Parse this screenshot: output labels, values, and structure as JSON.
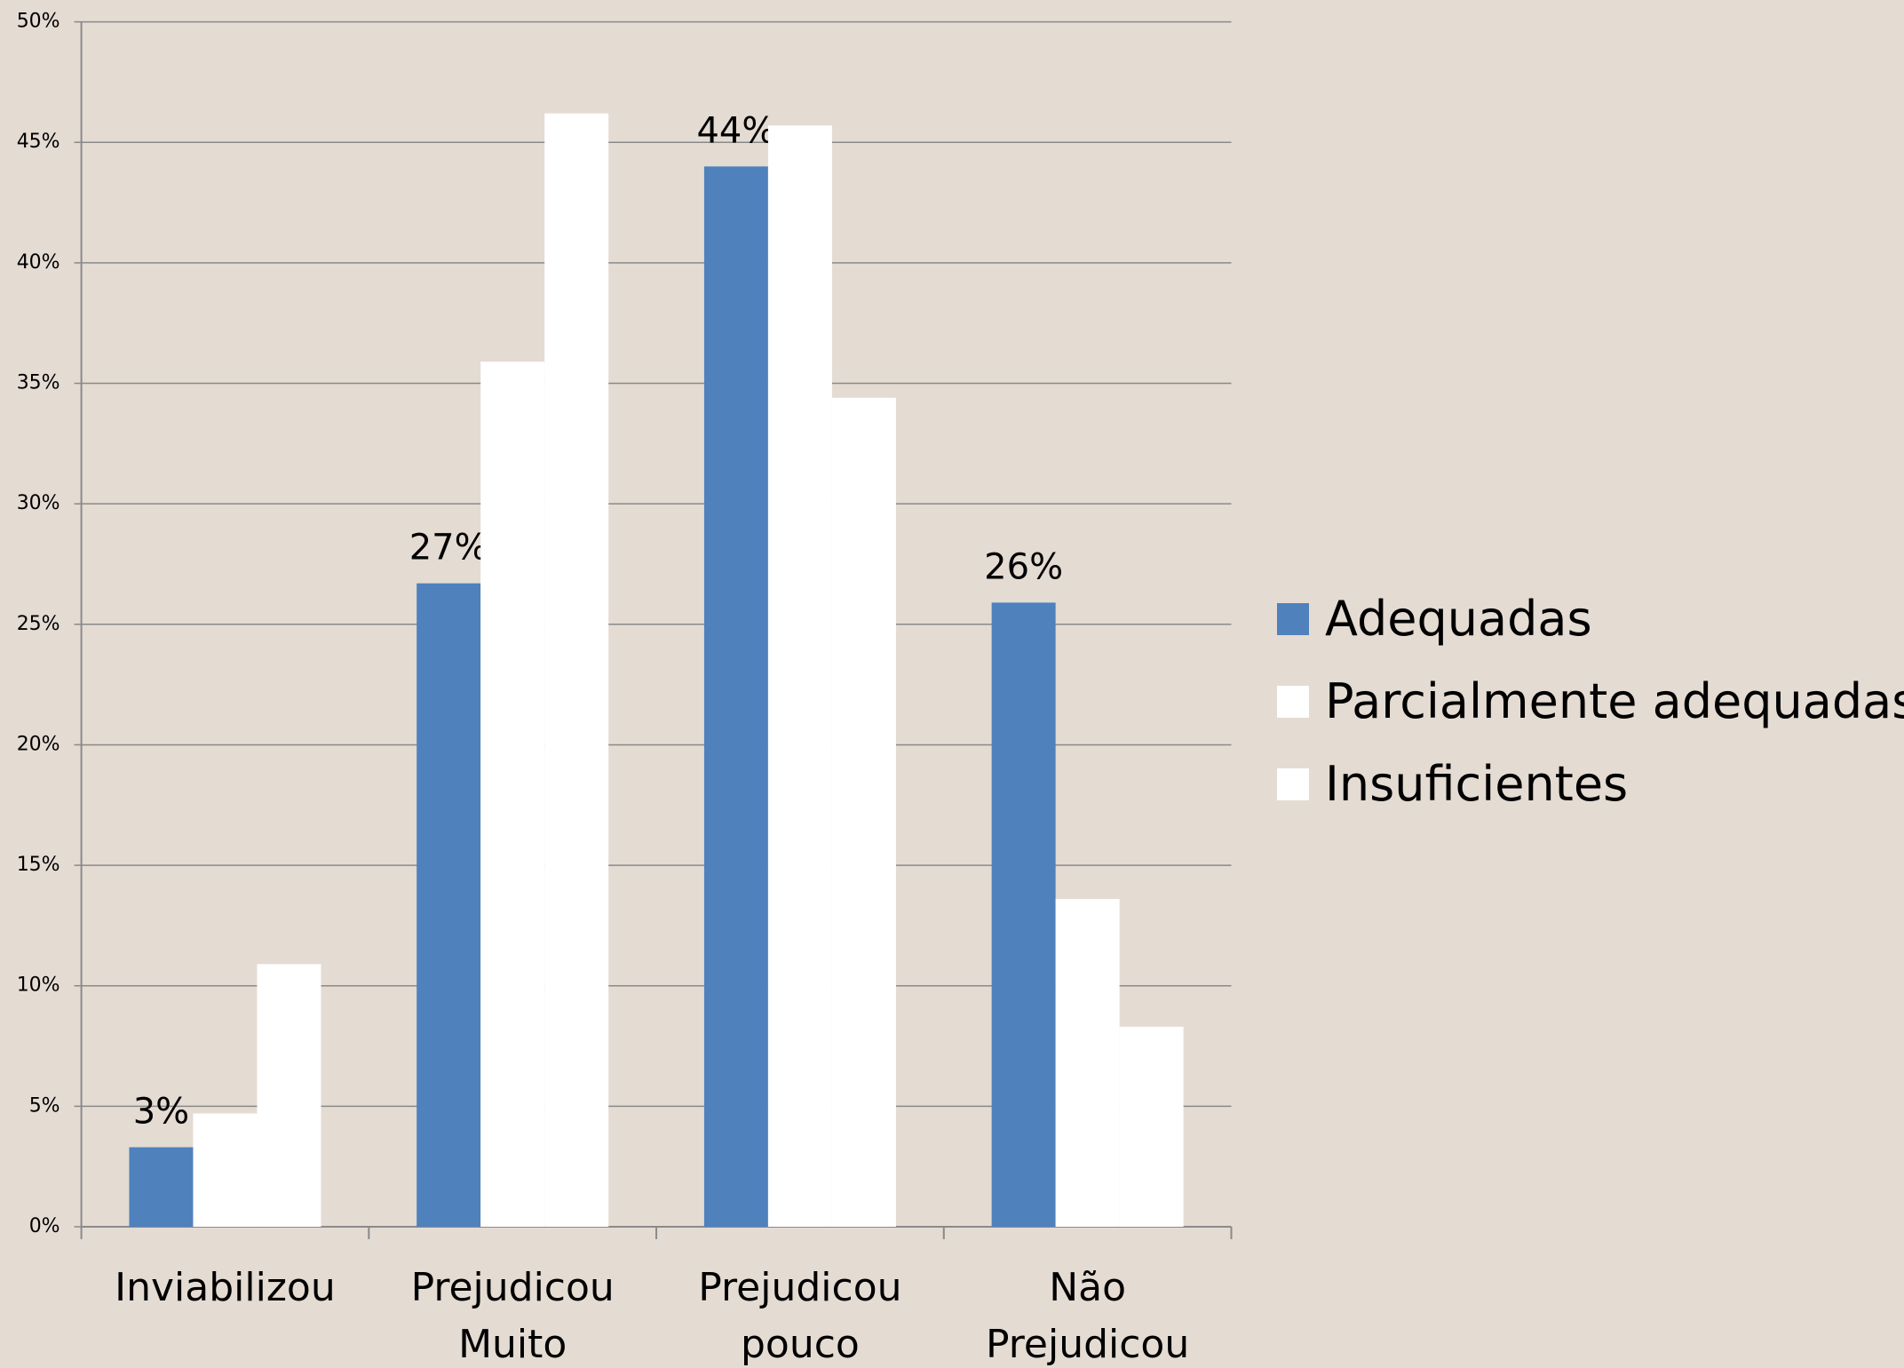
{
  "chart_data": {
    "type": "bar",
    "categories": [
      "Inviabilizou",
      "Prejudicou Muito",
      "Prejudicou pouco",
      "Não Prejudicou"
    ],
    "series": [
      {
        "name": "Adequadas",
        "color": "#4f81bd",
        "values": [
          3.3,
          26.7,
          44,
          25.9
        ],
        "value_labels": [
          "3%",
          "27%",
          "44%",
          "26%"
        ]
      },
      {
        "name": "Parcialmente adequadas",
        "color": "#ffffff",
        "values": [
          4.7,
          35.9,
          45.7,
          13.6
        ]
      },
      {
        "name": "Insuficientes",
        "color": "#ffffff",
        "values": [
          10.9,
          46.2,
          34.4,
          8.3
        ]
      }
    ],
    "ylim": [
      0,
      50
    ],
    "yticks": [
      {
        "value": 0,
        "label": "0%"
      },
      {
        "value": 5,
        "label": "5%"
      },
      {
        "value": 10,
        "label": "10%"
      },
      {
        "value": 15,
        "label": "15%"
      },
      {
        "value": 20,
        "label": "20%"
      },
      {
        "value": 25,
        "label": "25%"
      },
      {
        "value": 30,
        "label": "30%"
      },
      {
        "value": 35,
        "label": "35%"
      },
      {
        "value": 40,
        "label": "40%"
      },
      {
        "value": 45,
        "label": "45%"
      },
      {
        "value": 50,
        "label": "50%"
      }
    ],
    "grid": true,
    "legend": "right"
  }
}
